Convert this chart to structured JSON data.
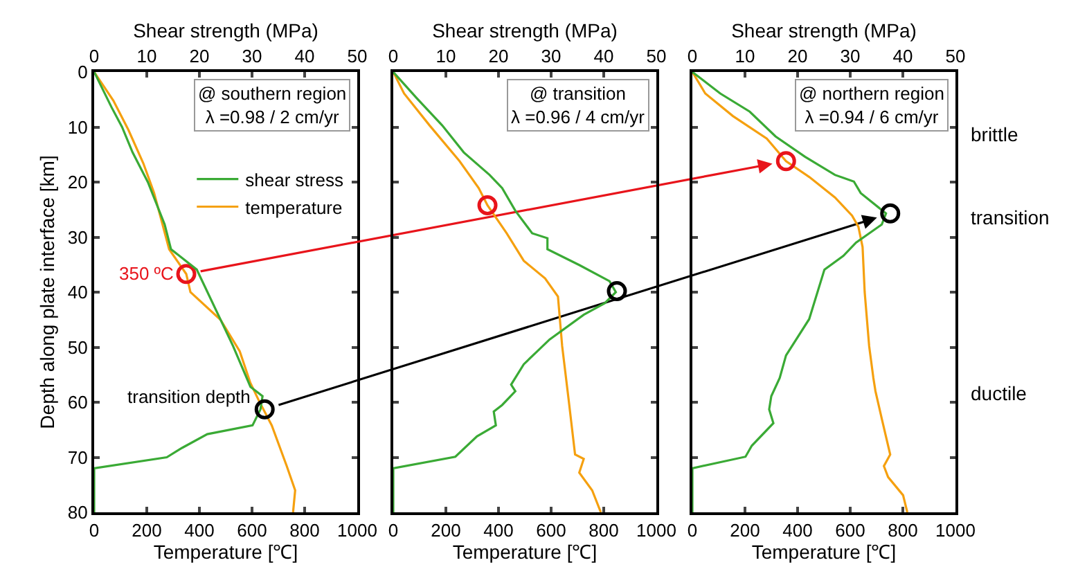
{
  "chart_data": [
    {
      "type": "line",
      "xlabel": "Temperature [℃]",
      "x2label": "Shear strength (MPa)",
      "ylabel": "Depth along plate interface [km]",
      "xlim": [
        0,
        1000
      ],
      "xticks": [
        0,
        200,
        400,
        600,
        800,
        1000
      ],
      "x2lim": [
        0,
        50
      ],
      "x2ticks": [
        0,
        10,
        20,
        30,
        40,
        50
      ],
      "ylim": [
        80,
        0
      ],
      "yticks": [
        0,
        10,
        20,
        30,
        40,
        50,
        60,
        70,
        80
      ],
      "legend": "top right",
      "annotations": [
        "@ southern region",
        "λ =0.98 / 2 cm/yr",
        {
          "text": "350 ºC",
          "x": 350,
          "y": 36.7
        },
        {
          "text": "transition depth",
          "x": 647,
          "y": 61.3
        }
      ],
      "series": [
        {
          "name": "shear stress",
          "axis": "x2",
          "color": "#3aaa35",
          "x": [
            0,
            3.3,
            5.3,
            7.3,
            10.2,
            13.4,
            14.6,
            19.5,
            19.9,
            26.4,
            29.7,
            32,
            31.6,
            30.1,
            21.5,
            16.7,
            13.8,
            0,
            0
          ],
          "values": [
            0,
            6.4,
            10,
            14.6,
            20,
            27.7,
            32.2,
            35.9,
            36.7,
            49.8,
            57.2,
            58.9,
            61.3,
            64.2,
            65.8,
            68.3,
            70,
            72,
            80
          ]
        },
        {
          "name": "temperature",
          "color": "#f5a00f",
          "x": [
            0,
            73,
            130,
            187,
            228,
            285,
            350,
            366,
            480,
            553,
            593,
            626,
            675,
            732,
            764,
            756
          ],
          "values": [
            0,
            5.2,
            10.5,
            16.6,
            22,
            32.2,
            36.7,
            40,
            45,
            50.7,
            56.4,
            59.7,
            64.2,
            71.6,
            76,
            80
          ]
        },
        {
          "type": "scatter",
          "marker": "circle",
          "color": "#e8141b",
          "x": [
            350
          ],
          "values": [
            36.7
          ]
        },
        {
          "type": "scatter",
          "marker": "circle",
          "axis": "x2",
          "color": "#000000",
          "x": [
            32.4
          ],
          "values": [
            61.3
          ]
        }
      ]
    },
    {
      "type": "line",
      "xlabel": "Temperature [℃]",
      "x2label": "Shear strength (MPa)",
      "xlim": [
        0,
        1000
      ],
      "xticks": [
        0,
        200,
        400,
        600,
        800,
        1000
      ],
      "x2lim": [
        0,
        50
      ],
      "x2ticks": [
        0,
        10,
        20,
        30,
        40,
        50
      ],
      "ylim": [
        80,
        0
      ],
      "yticks": [
        0,
        10,
        20,
        30,
        40,
        50,
        60,
        70,
        80
      ],
      "tick_labels": "x",
      "annotations": [
        "@ transition",
        "λ =0.96 / 4 cm/yr"
      ],
      "series": [
        {
          "axis": "x2",
          "color": "#3aaa35",
          "x": [
            0,
            4.5,
            9.3,
            13.4,
            18.3,
            20.7,
            23.2,
            26.4,
            29.3,
            29.3,
            35.4,
            41.1,
            42.3,
            40.2,
            36.2,
            29.7,
            24.8,
            22.4,
            23.2,
            20.7,
            19.1,
            19.5,
            15.9,
            11.8,
            0,
            0
          ],
          "values": [
            0,
            4.8,
            9.7,
            14.6,
            18.7,
            21.1,
            25.2,
            29.3,
            30.2,
            32.2,
            35.1,
            38,
            40,
            42,
            44.1,
            48.6,
            53.1,
            56.8,
            58,
            60.5,
            61.7,
            64.2,
            66.2,
            69.9,
            72,
            80
          ]
        },
        {
          "color": "#f5a00f",
          "x": [
            0,
            41,
            138,
            252,
            325,
            358,
            431,
            496,
            577,
            626,
            642,
            667,
            691,
            724,
            707,
            756,
            789
          ],
          "values": [
            0,
            3.9,
            9.7,
            16.2,
            21.1,
            24.2,
            29.3,
            34.3,
            37.5,
            40.8,
            49.8,
            59.7,
            69.5,
            70.3,
            72.8,
            76,
            80
          ]
        },
        {
          "type": "scatter",
          "marker": "circle",
          "color": "#e8141b",
          "x": [
            358
          ],
          "values": [
            24.2
          ]
        },
        {
          "type": "scatter",
          "marker": "circle",
          "axis": "x2",
          "color": "#000000",
          "x": [
            42.5
          ],
          "values": [
            39.8
          ]
        }
      ]
    },
    {
      "type": "line",
      "xlabel": "Temperature [℃]",
      "x2label": "Shear strength (MPa)",
      "xlim": [
        0,
        1000
      ],
      "xticks": [
        0,
        200,
        400,
        600,
        800,
        1000
      ],
      "x2lim": [
        0,
        50
      ],
      "x2ticks": [
        0,
        10,
        20,
        30,
        40,
        50
      ],
      "ylim": [
        80,
        0
      ],
      "yticks": [
        0,
        10,
        20,
        30,
        40,
        50,
        60,
        70,
        80
      ],
      "tick_labels": "x",
      "annotations": [
        "@ northern region",
        "λ =0.94 / 6 cm/yr",
        "brittle",
        "transition",
        "ductile"
      ],
      "series": [
        {
          "axis": "x2",
          "color": "#3aaa35",
          "x": [
            0,
            5.3,
            10.9,
            15.8,
            21.4,
            27.1,
            30.7,
            32,
            36.8,
            36,
            31.1,
            28.7,
            25.1,
            22.2,
            17.8,
            16.6,
            15,
            14.6,
            15.4,
            11.3,
            10.1,
            0,
            0
          ],
          "values": [
            0,
            3.9,
            7.2,
            11.7,
            15.4,
            18.7,
            19.9,
            22,
            25.7,
            27.7,
            31,
            33.4,
            35.9,
            44.9,
            51.5,
            55.6,
            58.9,
            61.3,
            63.8,
            67.9,
            69.9,
            72,
            80
          ]
        },
        {
          "color": "#f5a00f",
          "x": [
            0,
            49,
            154,
            283,
            356,
            445,
            542,
            607,
            631,
            647,
            655,
            672,
            688,
            696,
            720,
            752,
            728,
            744,
            801,
            817
          ],
          "values": [
            0,
            3.9,
            8,
            12.1,
            16.2,
            19.1,
            22.8,
            26.1,
            28.1,
            31.8,
            40,
            49.8,
            55.6,
            58,
            63,
            69.5,
            71.6,
            73.6,
            76.9,
            80
          ]
        },
        {
          "type": "scatter",
          "marker": "circle",
          "color": "#e8141b",
          "x": [
            356
          ],
          "values": [
            16.2
          ]
        },
        {
          "type": "scatter",
          "marker": "circle",
          "axis": "x2",
          "color": "#000000",
          "x": [
            37.6
          ],
          "values": [
            25.7
          ]
        }
      ]
    }
  ]
}
